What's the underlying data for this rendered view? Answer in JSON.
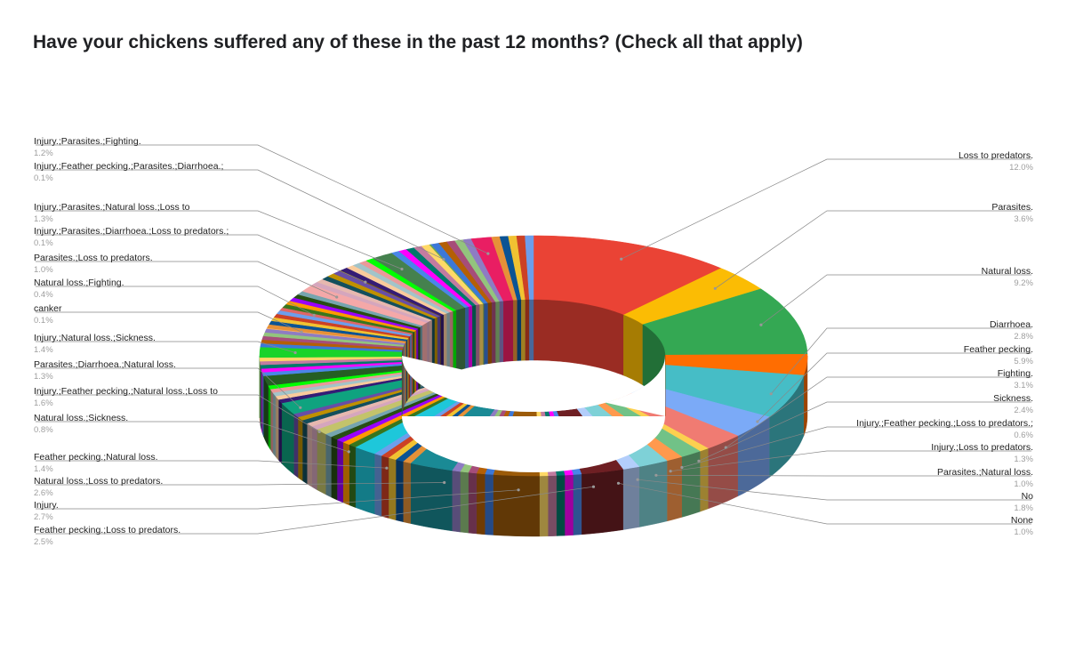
{
  "chart_data": {
    "type": "pie",
    "subtype": "3d-donut",
    "title": "Have your chickens suffered any of these in the past 12 months? (Check all that apply)",
    "slices": [
      {
        "label": "Loss to predators.",
        "value": 12.0,
        "color": "#ea4335"
      },
      {
        "label": "Parasites.",
        "value": 3.6,
        "color": "#fbbc04"
      },
      {
        "label": "Natural loss.",
        "value": 9.2,
        "color": "#34a853"
      },
      {
        "label": "Diarrhoea.",
        "value": 2.8,
        "color": "#ff6d01"
      },
      {
        "label": "Feather pecking.",
        "value": 5.9,
        "color": "#46bdc6"
      },
      {
        "label": "Fighting.",
        "value": 3.1,
        "color": "#7baaf7"
      },
      {
        "label": "Sickness.",
        "value": 2.4,
        "color": "#f07b72"
      },
      {
        "label": "Injury.;Feather pecking.;Loss to predators.;",
        "value": 0.6,
        "color": "#fcd04f"
      },
      {
        "label": "Injury.;Loss to predators.",
        "value": 1.3,
        "color": "#71c287"
      },
      {
        "label": "Parasites.;Natural loss.",
        "value": 1.0,
        "color": "#ff994d"
      },
      {
        "label": "No",
        "value": 1.8,
        "color": "#7ed1d7"
      },
      {
        "label": "None",
        "value": 1.0,
        "color": "#b3cefb"
      },
      {
        "label": "Feather pecking.;Loss to predators.",
        "value": 2.5,
        "color": "#6e1f23"
      },
      {
        "label": "Injury.",
        "value": 2.7,
        "color": "#9c5b09"
      },
      {
        "label": "Natural loss.;Loss to predators.",
        "value": 2.6,
        "color": "#1a8a95"
      },
      {
        "label": "Feather pecking.;Natural loss.",
        "value": 1.4,
        "color": "#1ec7da"
      },
      {
        "label": "Natural loss.;Sickness.",
        "value": 0.8,
        "color": "#c3c36b"
      },
      {
        "label": "Injury.;Feather pecking.;Natural loss.;Loss to",
        "value": 1.6,
        "color": "#0fa37f"
      },
      {
        "label": "Parasites.;Diarrhoea.;Natural loss.",
        "value": 1.3,
        "color": "#255e23"
      },
      {
        "label": "Injury.;Natural loss.;Sickness.",
        "value": 1.4,
        "color": "#18d32a"
      },
      {
        "label": "canker",
        "value": 0.1,
        "color": "#f6b26b"
      },
      {
        "label": "Natural loss.;Fighting.",
        "value": 0.4,
        "color": "#e06666"
      },
      {
        "label": "Parasites.;Loss to predators.",
        "value": 1.0,
        "color": "#f4a8a8"
      },
      {
        "label": "Injury.;Parasites.;Diarrhoea.;Loss to predators.;",
        "value": 0.1,
        "color": "#7f6000"
      },
      {
        "label": "Injury.;Parasites.;Natural loss.;Loss to",
        "value": 1.3,
        "color": "#45814e"
      },
      {
        "label": "Injury.;Feather pecking.;Parasites.;Diarrhoea.;",
        "value": 0.1,
        "color": "#6aa84f"
      },
      {
        "label": "Injury.;Parasites.;Fighting.",
        "value": 1.2,
        "color": "#e91e63"
      }
    ]
  },
  "labels_right": [
    "Loss to predators.",
    "Parasites.",
    "Natural loss.",
    "Diarrhoea.",
    "Feather pecking.",
    "Fighting.",
    "Sickness.",
    "Injury.;Feather pecking.;Loss to predators.;",
    "Injury.;Loss to predators.",
    "Parasites.;Natural loss.",
    "No",
    "None"
  ],
  "labels_left": [
    "Injury.;Parasites.;Fighting.",
    "Injury.;Feather pecking.;Parasites.;Diarrhoea.;",
    "Injury.;Parasites.;Natural loss.;Loss to",
    "Injury.;Parasites.;Diarrhoea.;Loss to predators.;",
    "Parasites.;Loss to predators.",
    "Natural loss.;Fighting.",
    "canker",
    "Injury.;Natural loss.;Sickness.",
    "Parasites.;Diarrhoea.;Natural loss.",
    "Injury.;Feather pecking.;Natural loss.;Loss to",
    "Natural loss.;Sickness.",
    "Feather pecking.;Natural loss.",
    "Natural loss.;Loss to predators.",
    "Injury.",
    "Feather pecking.;Loss to predators."
  ]
}
